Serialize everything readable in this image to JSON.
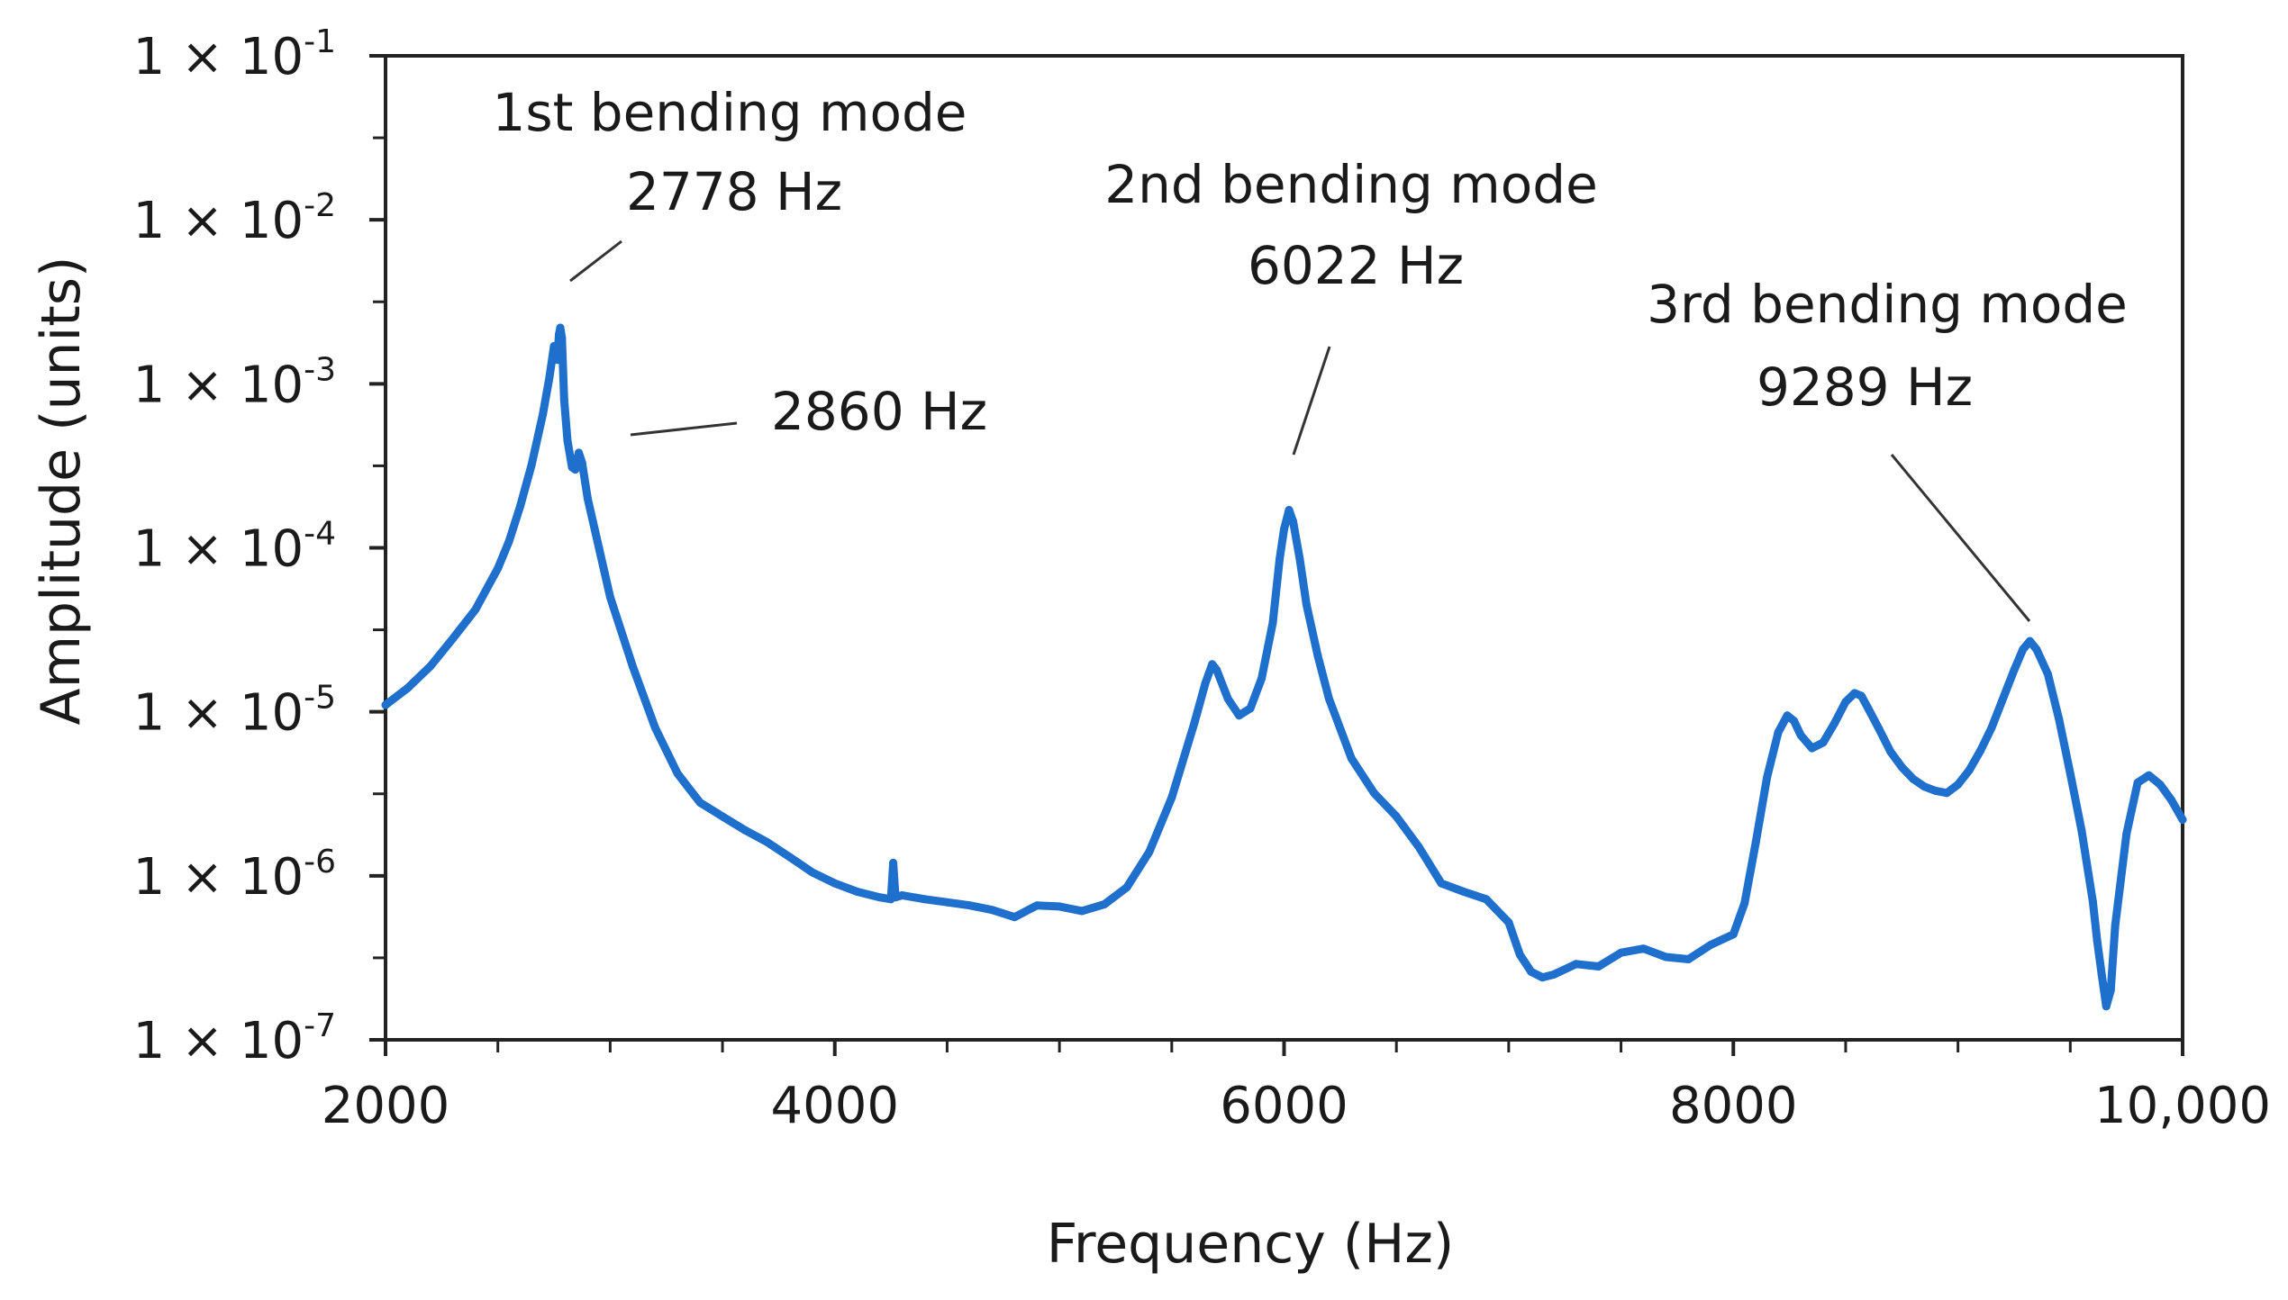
{
  "chart_data": {
    "type": "line",
    "title": "",
    "xlabel": "Frequency (Hz)",
    "ylabel": "Amplitude (units)",
    "xlim": [
      2000,
      10000
    ],
    "ylim": [
      1e-07,
      0.1
    ],
    "yscale": "log",
    "grid": false,
    "line_color": "#1f6fcc",
    "x_ticks": [
      {
        "value": 2000,
        "label": "2000"
      },
      {
        "value": 4000,
        "label": "4000"
      },
      {
        "value": 6000,
        "label": "6000"
      },
      {
        "value": 8000,
        "label": "8000"
      },
      {
        "value": 10000,
        "label": "10,000"
      }
    ],
    "y_ticks": [
      {
        "value": 0.1,
        "mantissa": "1 × 10",
        "exponent": "-1"
      },
      {
        "value": 0.01,
        "mantissa": "1 × 10",
        "exponent": "-2"
      },
      {
        "value": 0.001,
        "mantissa": "1 × 10",
        "exponent": "-3"
      },
      {
        "value": 0.0001,
        "mantissa": "1 × 10",
        "exponent": "-4"
      },
      {
        "value": 1e-05,
        "mantissa": "1 × 10",
        "exponent": "-5"
      },
      {
        "value": 1e-06,
        "mantissa": "1 × 10",
        "exponent": "-6"
      },
      {
        "value": 1e-07,
        "mantissa": "1 × 10",
        "exponent": "-7"
      }
    ],
    "series": [
      {
        "name": "Amplitude",
        "x": [
          2000,
          2100,
          2200,
          2300,
          2400,
          2500,
          2550,
          2600,
          2650,
          2700,
          2730,
          2750,
          2765,
          2772,
          2778,
          2785,
          2795,
          2810,
          2830,
          2845,
          2860,
          2875,
          2900,
          2950,
          3000,
          3100,
          3200,
          3300,
          3400,
          3500,
          3600,
          3700,
          3800,
          3900,
          4000,
          4100,
          4200,
          4250,
          4260,
          4270,
          4300,
          4400,
          4500,
          4600,
          4700,
          4800,
          4900,
          5000,
          5100,
          5200,
          5300,
          5400,
          5500,
          5600,
          5650,
          5680,
          5700,
          5750,
          5800,
          5850,
          5900,
          5950,
          5980,
          6000,
          6022,
          6040,
          6070,
          6100,
          6150,
          6200,
          6300,
          6400,
          6500,
          6600,
          6700,
          6800,
          6900,
          7000,
          7050,
          7100,
          7150,
          7200,
          7300,
          7400,
          7500,
          7600,
          7700,
          7800,
          7900,
          8000,
          8050,
          8100,
          8150,
          8200,
          8240,
          8270,
          8300,
          8350,
          8400,
          8450,
          8500,
          8540,
          8570,
          8600,
          8650,
          8700,
          8750,
          8800,
          8850,
          8900,
          8950,
          9000,
          9050,
          9100,
          9150,
          9200,
          9250,
          9289,
          9320,
          9350,
          9400,
          9450,
          9500,
          9550,
          9600,
          9620,
          9640,
          9660,
          9680,
          9700,
          9750,
          9800,
          9850,
          9900,
          9950,
          10000
        ],
        "values": [
          1.1e-05,
          1.4e-05,
          1.9e-05,
          2.8e-05,
          4.2e-05,
          7.5e-05,
          0.00011,
          0.00018,
          0.00032,
          0.00065,
          0.0011,
          0.0017,
          0.0014,
          0.002,
          0.0022,
          0.0019,
          0.0008,
          0.00045,
          0.00031,
          0.0003,
          0.00038,
          0.00033,
          0.0002,
          0.0001,
          5e-05,
          1.9e-05,
          8e-06,
          4.2e-06,
          2.8e-06,
          2.3e-06,
          1.9e-06,
          1.6e-06,
          1.3e-06,
          1.05e-06,
          9e-07,
          8e-07,
          7.4e-07,
          7.2e-07,
          1.2e-06,
          7.4e-07,
          7.6e-07,
          7.2e-07,
          6.9e-07,
          6.6e-07,
          6.2e-07,
          5.6e-07,
          6.6e-07,
          6.5e-07,
          6.1e-07,
          6.7e-07,
          8.5e-07,
          1.4e-06,
          3e-06,
          8.5e-06,
          1.5e-05,
          1.95e-05,
          1.8e-05,
          1.2e-05,
          9.5e-06,
          1.05e-05,
          1.6e-05,
          3.5e-05,
          8.5e-05,
          0.00013,
          0.00017,
          0.000145,
          8.5e-05,
          4.5e-05,
          2.2e-05,
          1.2e-05,
          5.2e-06,
          3.2e-06,
          2.3e-06,
          1.5e-06,
          9e-07,
          8e-07,
          7.2e-07,
          5.2e-07,
          3.3e-07,
          2.6e-07,
          2.4e-07,
          2.5e-07,
          2.9e-07,
          2.8e-07,
          3.4e-07,
          3.6e-07,
          3.2e-07,
          3.1e-07,
          3.8e-07,
          4.4e-07,
          6.8e-07,
          1.6e-06,
          4e-06,
          7.5e-06,
          9.5e-06,
          8.8e-06,
          7.2e-06,
          6e-06,
          6.5e-06,
          8.5e-06,
          1.15e-05,
          1.3e-05,
          1.25e-05,
          1.05e-05,
          7.8e-06,
          5.7e-06,
          4.6e-06,
          3.9e-06,
          3.5e-06,
          3.3e-06,
          3.2e-06,
          3.6e-06,
          4.4e-06,
          5.8e-06,
          8e-06,
          1.2e-05,
          1.8e-05,
          2.4e-05,
          2.7e-05,
          2.4e-05,
          1.7e-05,
          9e-06,
          4.2e-06,
          1.9e-06,
          7e-07,
          4e-07,
          2.5e-07,
          1.6e-07,
          2e-07,
          5e-07,
          1.8e-06,
          3.7e-06,
          4.1e-06,
          3.6e-06,
          2.9e-06,
          2.2e-06
        ]
      }
    ],
    "annotations": [
      {
        "id": "first-bending-mode",
        "lines": [
          "1st bending mode",
          "2778 Hz"
        ],
        "target_x": 2778,
        "target_y": 0.0024
      },
      {
        "id": "second-peak-2860",
        "lines": [
          "2860 Hz"
        ],
        "target_x": 2860,
        "target_y": 0.0004
      },
      {
        "id": "second-bending-mode",
        "lines": [
          "2nd bending mode",
          "6022 Hz"
        ],
        "target_x": 6022,
        "target_y": 0.00024
      },
      {
        "id": "third-bending-mode",
        "lines": [
          "3rd bending mode",
          "9289 Hz"
        ],
        "target_x": 9289,
        "target_y": 3e-05
      }
    ]
  }
}
